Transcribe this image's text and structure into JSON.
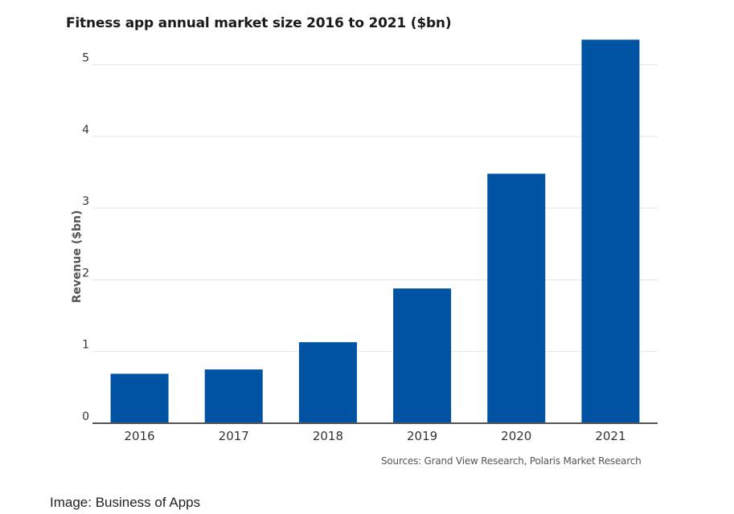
{
  "title": "Fitness app annual market size 2016 to 2021 ($bn)",
  "source_note": "Sources: Grand View Research, Polaris Market Research",
  "image_credit": "Image: Business of Apps",
  "colors": {
    "bar": "#0052a3",
    "grid": "#e3e3e3",
    "axis": "#555555"
  },
  "chart_data": {
    "type": "bar",
    "title": "Fitness app annual market size 2016 to 2021 ($bn)",
    "xlabel": "",
    "ylabel": "Revenue ($bn)",
    "categories": [
      "2016",
      "2017",
      "2018",
      "2019",
      "2020",
      "2021"
    ],
    "values": [
      0.69,
      0.75,
      1.13,
      1.88,
      3.48,
      5.35
    ],
    "ylim": [
      0,
      5.5
    ],
    "yticks": [
      0,
      1,
      2,
      3,
      4,
      5
    ],
    "grid": true,
    "legend": "none"
  }
}
